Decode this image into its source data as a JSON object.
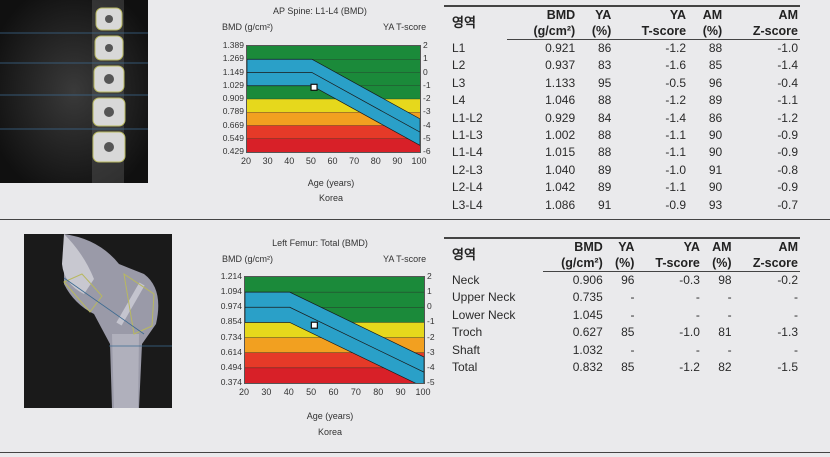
{
  "spine": {
    "chart_data": {
      "type": "line",
      "title": "AP Spine: L1-L4 (BMD)",
      "ylabel": "BMD (g/cm²)",
      "ylabel_right": "YA T-score",
      "xlabel": "Age (years)",
      "subtitle": "Korea",
      "x_ticks": [
        "20",
        "30",
        "40",
        "50",
        "60",
        "70",
        "80",
        "90",
        "100"
      ],
      "xlim": [
        20,
        100
      ],
      "y_ticks": [
        "1.389",
        "1.269",
        "1.149",
        "1.029",
        "0.909",
        "0.789",
        "0.669",
        "0.549",
        "0.429"
      ],
      "ylim": [
        0.429,
        1.389
      ],
      "t_ticks": [
        "2",
        "1",
        "0",
        "-1",
        "-2",
        "-3",
        "-4",
        "-5",
        "-6"
      ],
      "ref_curve": {
        "x": [
          20,
          50,
          100
        ],
        "y": [
          1.149,
          1.149,
          0.609
        ]
      },
      "ref_band": 0.12,
      "patient_point": {
        "age": 51,
        "bmd": 1.015
      },
      "zone_colors": [
        "#1b8a3a",
        "#1b8a3a",
        "#1b8a3a",
        "#1b8a3a",
        "#e6d81c",
        "#f2a020",
        "#e53a28",
        "#d82028"
      ],
      "band_color": "#2aa0c8"
    },
    "table": {
      "header_region": "영역",
      "header_bmd": "BMD",
      "header_bmd_unit": "(g/cm²)",
      "header_ya": "YA",
      "header_ya_pct": "(%)",
      "header_ya_t": "YA",
      "header_t": "T-score",
      "header_am": "AM",
      "header_am_pct": "(%)",
      "header_am_z": "AM",
      "header_z": "Z-score",
      "rows": [
        {
          "region": "L1",
          "bmd": "0.921",
          "ya": "86",
          "t": "-1.2",
          "am": "88",
          "z": "-1.0"
        },
        {
          "region": "L2",
          "bmd": "0.937",
          "ya": "83",
          "t": "-1.6",
          "am": "85",
          "z": "-1.4"
        },
        {
          "region": "L3",
          "bmd": "1.133",
          "ya": "95",
          "t": "-0.5",
          "am": "96",
          "z": "-0.4"
        },
        {
          "region": "L4",
          "bmd": "1.046",
          "ya": "88",
          "t": "-1.2",
          "am": "89",
          "z": "-1.1"
        },
        {
          "region": "L1-L2",
          "bmd": "0.929",
          "ya": "84",
          "t": "-1.4",
          "am": "86",
          "z": "-1.2"
        },
        {
          "region": "L1-L3",
          "bmd": "1.002",
          "ya": "88",
          "t": "-1.1",
          "am": "90",
          "z": "-0.9"
        },
        {
          "region": "L1-L4",
          "bmd": "1.015",
          "ya": "88",
          "t": "-1.1",
          "am": "90",
          "z": "-0.9"
        },
        {
          "region": "L2-L3",
          "bmd": "1.040",
          "ya": "89",
          "t": "-1.0",
          "am": "91",
          "z": "-0.8"
        },
        {
          "region": "L2-L4",
          "bmd": "1.042",
          "ya": "89",
          "t": "-1.1",
          "am": "90",
          "z": "-0.9"
        },
        {
          "region": "L3-L4",
          "bmd": "1.086",
          "ya": "91",
          "t": "-0.9",
          "am": "93",
          "z": "-0.7"
        }
      ]
    }
  },
  "femur": {
    "chart_data": {
      "type": "line",
      "title": "Left Femur: Total (BMD)",
      "ylabel": "BMD (g/cm²)",
      "ylabel_right": "YA T-score",
      "xlabel": "Age (years)",
      "subtitle": "Korea",
      "x_ticks": [
        "20",
        "30",
        "40",
        "50",
        "60",
        "70",
        "80",
        "90",
        "100"
      ],
      "xlim": [
        20,
        100
      ],
      "y_ticks": [
        "1.214",
        "1.094",
        "0.974",
        "0.854",
        "0.734",
        "0.614",
        "0.494",
        "0.374"
      ],
      "ylim": [
        0.374,
        1.214
      ],
      "t_ticks": [
        "2",
        "1",
        "0",
        "-1",
        "-2",
        "-3",
        "-4",
        "-5"
      ],
      "ref_curve": {
        "x": [
          20,
          40,
          100
        ],
        "y": [
          0.974,
          0.974,
          0.46
        ]
      },
      "ref_band": 0.12,
      "patient_point": {
        "age": 51,
        "bmd": 0.832
      },
      "zone_colors": [
        "#1b8a3a",
        "#1b8a3a",
        "#1b8a3a",
        "#e6d81c",
        "#f2a020",
        "#e53a28",
        "#d82028"
      ],
      "band_color": "#2aa0c8"
    },
    "table": {
      "header_region": "영역",
      "header_bmd": "BMD",
      "header_bmd_unit": "(g/cm²)",
      "header_ya": "YA",
      "header_ya_pct": "(%)",
      "header_ya_t": "YA",
      "header_t": "T-score",
      "header_am": "AM",
      "header_am_pct": "(%)",
      "header_am_z": "AM",
      "header_z": "Z-score",
      "rows": [
        {
          "region": "Neck",
          "bmd": "0.906",
          "ya": "96",
          "t": "-0.3",
          "am": "98",
          "z": "-0.2"
        },
        {
          "region": "Upper Neck",
          "bmd": "0.735",
          "ya": "-",
          "t": "-",
          "am": "-",
          "z": "-"
        },
        {
          "region": "Lower Neck",
          "bmd": "1.045",
          "ya": "-",
          "t": "-",
          "am": "-",
          "z": "-"
        },
        {
          "region": "Troch",
          "bmd": "0.627",
          "ya": "85",
          "t": "-1.0",
          "am": "81",
          "z": "-1.3"
        },
        {
          "region": "Shaft",
          "bmd": "1.032",
          "ya": "-",
          "t": "-",
          "am": "-",
          "z": "-"
        },
        {
          "region": "Total",
          "bmd": "0.832",
          "ya": "85",
          "t": "-1.2",
          "am": "82",
          "z": "-1.5"
        }
      ]
    }
  }
}
